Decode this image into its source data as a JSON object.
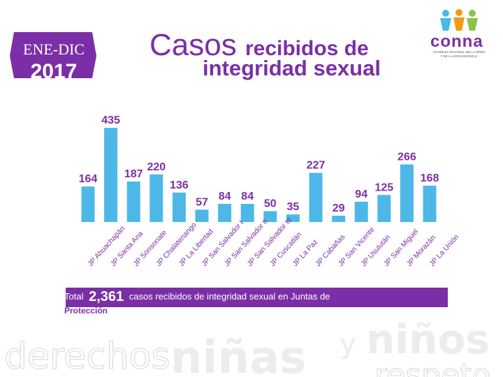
{
  "header": {
    "period_label": "ENE-DIC",
    "year": "2017",
    "title_word1": "Casos",
    "title_rest_line1": "recibidos de",
    "title_line2": "integridad sexual"
  },
  "logo": {
    "name": "conna",
    "tagline_line1": "CONSEJO NACIONAL DE LA NIÑEZ",
    "tagline_line2": "Y DE LA ADOLESCENCIA"
  },
  "footer": {
    "total_prefix": "Total",
    "total_value": "2,361",
    "total_suffix": "casos recibidos de integridad sexual en Juntas de",
    "total_line2": "Protección"
  },
  "watermark": {
    "word1": "derechos",
    "word2": "niñas",
    "word3": "y",
    "word4": "niños",
    "word5": "respeto"
  },
  "colors": {
    "bar": "#4db8e8",
    "label": "#7b2fa6",
    "band": "#7b2fa6",
    "watermark": "#e6e6e6"
  },
  "chart_data": {
    "type": "bar",
    "title": "",
    "xlabel": "",
    "ylabel": "",
    "ylim": [
      0,
      450
    ],
    "grid": false,
    "categories": [
      "JP Ahuachapán",
      "JP Santa Ana",
      "JP Sonsonate",
      "JP Chalatenango",
      "JP La Libertad",
      "JP San Salvador I",
      "JP San Salvador II",
      "JP San Salvador III",
      "JP Cuscatlán",
      "JP La Paz",
      "JP Cabañas",
      "JP San Vicente",
      "JP Usulután",
      "JP San Miguel",
      "JP Morazán",
      "JP La Unión"
    ],
    "values": [
      164,
      435,
      187,
      220,
      136,
      57,
      84,
      84,
      50,
      35,
      227,
      29,
      94,
      125,
      266,
      168
    ]
  }
}
